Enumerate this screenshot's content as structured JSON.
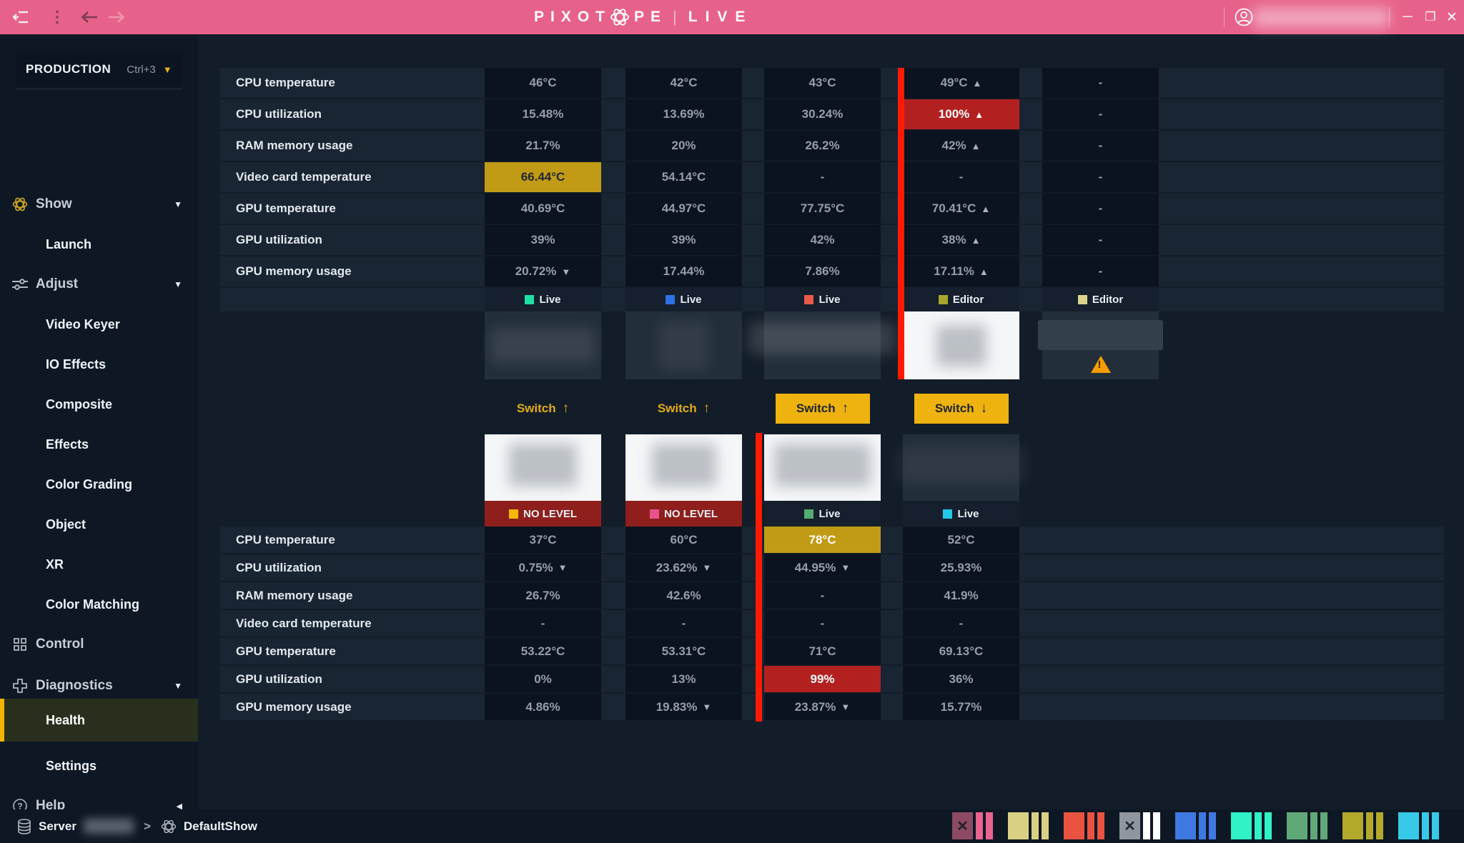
{
  "titlebar": {
    "logo_left": "PIXOT",
    "logo_right": "PE",
    "logo_pipe": "|",
    "logo_live": "LIVE",
    "window_controls": {
      "minimize": "─",
      "maximize": "❐",
      "close": "✕"
    },
    "bar_color": "#e7628a"
  },
  "sidebar": {
    "production": {
      "label": "PRODUCTION",
      "shortcut": "Ctrl+3"
    },
    "items": [
      {
        "label": "Show",
        "type": "section",
        "icon": "pixotope-icon",
        "caret": "down"
      },
      {
        "label": "Launch",
        "type": "child"
      },
      {
        "label": "Adjust",
        "type": "section",
        "icon": "sliders-icon",
        "caret": "down"
      },
      {
        "label": "Video Keyer",
        "type": "child"
      },
      {
        "label": "IO Effects",
        "type": "child"
      },
      {
        "label": "Composite",
        "type": "child"
      },
      {
        "label": "Effects",
        "type": "child"
      },
      {
        "label": "Color Grading",
        "type": "child"
      },
      {
        "label": "Object",
        "type": "child"
      },
      {
        "label": "XR",
        "type": "child"
      },
      {
        "label": "Color Matching",
        "type": "child"
      },
      {
        "label": "Control",
        "type": "section",
        "icon": "grid-icon"
      },
      {
        "label": "Diagnostics",
        "type": "section",
        "icon": "diagnostics-icon",
        "caret": "down"
      },
      {
        "label": "Health",
        "type": "child",
        "active": true
      },
      {
        "label": "Settings",
        "type": "child"
      },
      {
        "label": "Help",
        "type": "section",
        "icon": "help-icon",
        "caret": "left"
      }
    ]
  },
  "health": {
    "metric_labels": [
      "CPU temperature",
      "CPU utilization",
      "RAM memory usage",
      "Video card temperature",
      "GPU temperature",
      "GPU utilization",
      "GPU memory usage"
    ],
    "group1": [
      {
        "status": "Live",
        "status_color": "#1fdfa4",
        "card": "dark",
        "cells": [
          {
            "text": "46°C"
          },
          {
            "text": "15.48%"
          },
          {
            "text": "21.7%"
          },
          {
            "text": "66.44°C",
            "highlight": "warning-dark"
          },
          {
            "text": "40.69°C"
          },
          {
            "text": "39%"
          },
          {
            "text": "20.72%",
            "trend": "down"
          }
        ]
      },
      {
        "status": "Live",
        "status_color": "#2e71e5",
        "card": "dark",
        "cells": [
          {
            "text": "42°C"
          },
          {
            "text": "13.69%"
          },
          {
            "text": "20%"
          },
          {
            "text": "54.14°C"
          },
          {
            "text": "44.97°C"
          },
          {
            "text": "39%"
          },
          {
            "text": "17.44%"
          }
        ]
      },
      {
        "status": "Live",
        "status_color": "#e85b49",
        "card": "dark",
        "cells": [
          {
            "text": "43°C"
          },
          {
            "text": "30.24%"
          },
          {
            "text": "26.2%"
          },
          {
            "text": "-"
          },
          {
            "text": "77.75°C"
          },
          {
            "text": "42%"
          },
          {
            "text": "7.86%"
          }
        ]
      },
      {
        "status": "Editor",
        "status_color": "#a8a52c",
        "card": "white",
        "alert_bar": true,
        "cells": [
          {
            "text": "49°C",
            "trend": "up"
          },
          {
            "text": "100%",
            "trend": "up",
            "highlight": "critical"
          },
          {
            "text": "42%",
            "trend": "up"
          },
          {
            "text": "-"
          },
          {
            "text": "70.41°C",
            "trend": "up"
          },
          {
            "text": "38%",
            "trend": "up"
          },
          {
            "text": "17.11%",
            "trend": "up"
          }
        ]
      },
      {
        "status": "Editor",
        "status_color": "#dbd38c",
        "card": "warn",
        "cells": [
          {
            "text": "-"
          },
          {
            "text": "-"
          },
          {
            "text": "-"
          },
          {
            "text": "-"
          },
          {
            "text": "-"
          },
          {
            "text": "-"
          },
          {
            "text": "-"
          }
        ]
      }
    ],
    "switches": [
      {
        "label": "Switch",
        "direction": "up",
        "filled": false
      },
      {
        "label": "Switch",
        "direction": "up",
        "filled": false
      },
      {
        "label": "Switch",
        "direction": "up",
        "filled": true
      },
      {
        "label": "Switch",
        "direction": "down",
        "filled": true
      }
    ],
    "group2": [
      {
        "status": "NO LEVEL",
        "status_color": "#f5b800",
        "badge_bg": "#8e1f1c",
        "card": "white",
        "cells": [
          {
            "text": "37°C"
          },
          {
            "text": "0.75%",
            "trend": "down"
          },
          {
            "text": "26.7%"
          },
          {
            "text": "-"
          },
          {
            "text": "53.22°C"
          },
          {
            "text": "0%"
          },
          {
            "text": "4.86%"
          }
        ]
      },
      {
        "status": "NO LEVEL",
        "status_color": "#e6548e",
        "badge_bg": "#8e1f1c",
        "card": "white",
        "cells": [
          {
            "text": "60°C"
          },
          {
            "text": "23.62%",
            "trend": "down"
          },
          {
            "text": "42.6%"
          },
          {
            "text": "-"
          },
          {
            "text": "53.31°C"
          },
          {
            "text": "13%"
          },
          {
            "text": "19.83%",
            "trend": "down"
          }
        ]
      },
      {
        "status": "Live",
        "status_color": "#55ab70",
        "card": "white",
        "alert_bar": true,
        "cells": [
          {
            "text": "78°C",
            "highlight": "warning"
          },
          {
            "text": "44.95%",
            "trend": "down"
          },
          {
            "text": "-"
          },
          {
            "text": "-"
          },
          {
            "text": "71°C"
          },
          {
            "text": "99%",
            "highlight": "critical"
          },
          {
            "text": "23.87%",
            "trend": "down"
          }
        ]
      },
      {
        "status": "Live",
        "status_color": "#25c9e8",
        "card": "dark2",
        "cells": [
          {
            "text": "52°C"
          },
          {
            "text": "25.93%"
          },
          {
            "text": "41.9%"
          },
          {
            "text": "-"
          },
          {
            "text": "69.13°C"
          },
          {
            "text": "36%"
          },
          {
            "text": "15.77%"
          }
        ]
      }
    ]
  },
  "statusbar": {
    "server_label": "Server",
    "chevron": ">",
    "show_name": "DefaultShow",
    "indicators": [
      {
        "main": "#8d4a63",
        "bars": "#e9648f",
        "x": true
      },
      {
        "main": "#d9d084",
        "bars": "#d9d084",
        "x": false
      },
      {
        "main": "#e95440",
        "bars": "#e95440",
        "x": false
      },
      {
        "main": "#8f969d",
        "bars": "#ffffff",
        "x": true
      },
      {
        "main": "#3e79e1",
        "bars": "#3e79e1",
        "x": false
      },
      {
        "main": "#2ff2c6",
        "bars": "#2ff2c6",
        "x": false
      },
      {
        "main": "#61a878",
        "bars": "#61a878",
        "x": false
      },
      {
        "main": "#b3a92d",
        "bars": "#b3a92d",
        "x": false
      },
      {
        "main": "#38c9e9",
        "bars": "#38c9e9",
        "x": false
      }
    ]
  }
}
